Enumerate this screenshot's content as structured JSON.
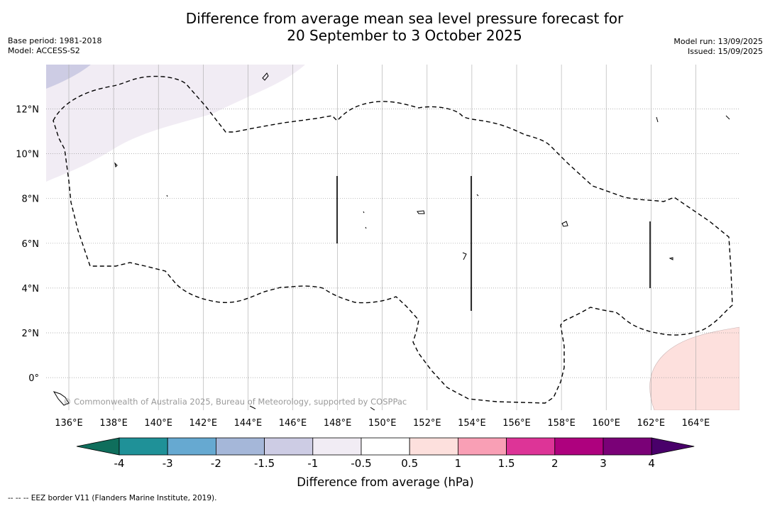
{
  "header": {
    "title_line1": "Difference from average mean sea level pressure forecast for",
    "title_line2": "20 September to 3 October 2025",
    "base_period": "Base period: 1981-2018",
    "model": "Model: ACCESS-S2",
    "model_run": "Model run: 13/09/2025",
    "issued": "Issued: 15/09/2025"
  },
  "map": {
    "lon_ticks": [
      "136°E",
      "138°E",
      "140°E",
      "142°E",
      "144°E",
      "146°E",
      "148°E",
      "150°E",
      "152°E",
      "154°E",
      "156°E",
      "158°E",
      "160°E",
      "162°E",
      "164°E"
    ],
    "lat_ticks": [
      "12°N",
      "10°N",
      "8°N",
      "6°N",
      "4°N",
      "2°N",
      "0°"
    ],
    "copyright": "© Commonwealth of Australia 2025, Bureau of Meteorology, supported by COSPPac"
  },
  "legend": {
    "tick_labels": [
      "-4",
      "-3",
      "-2",
      "-1.5",
      "-1",
      "-0.5",
      "0.5",
      "1",
      "1.5",
      "2",
      "3",
      "4"
    ],
    "title": "Difference from average (hPa)",
    "colors": [
      "#0f6e5c",
      "#1f9198",
      "#66a9d1",
      "#a5b7d9",
      "#cdcce4",
      "#f1ecf4",
      "#ffffff",
      "#fde0dd",
      "#f99fb5",
      "#dd3497",
      "#ae017e",
      "#7a0177",
      "#49006a"
    ]
  },
  "footnote": "--  --  -- EEZ border V11 (Flanders Marine Institute, 2019)."
}
